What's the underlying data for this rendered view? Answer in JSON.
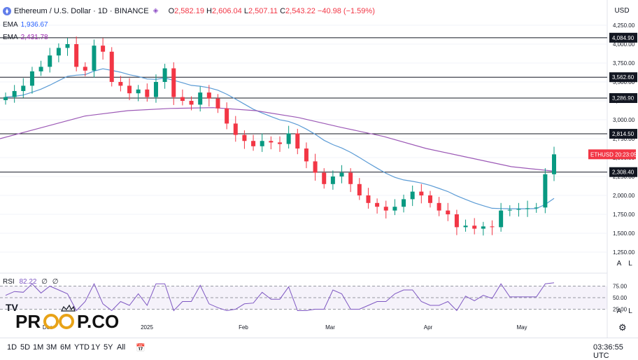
{
  "header": {
    "symbol": "Ethereum / U.S. Dollar · 1D · BINANCE",
    "ohlc": {
      "o_label": "O",
      "o": "2,582.19",
      "h_label": "H",
      "h": "2,606.04",
      "l_label": "L",
      "l": "2,507.11",
      "c_label": "C",
      "c": "2,543.22",
      "change": "−40.98 (−1.59%)"
    },
    "currency": "USD"
  },
  "indicators": [
    {
      "name": "EMA",
      "value": "1,936.67",
      "color": "#2962ff"
    },
    {
      "name": "EMA",
      "value": "2,431.78",
      "color": "#9c27b0"
    }
  ],
  "rsi": {
    "name": "RSI",
    "value": "82.22",
    "extra1": "∅",
    "extra2": "∅",
    "levels": [
      "75.00",
      "50.00",
      "25.00"
    ],
    "last": 82.22
  },
  "price_axis": {
    "ticks": [
      "4,250.00",
      "4,000.00",
      "3,750.00",
      "3,500.00",
      "3,250.00",
      "3,000.00",
      "2,750.00",
      "2,500.00",
      "2,250.00",
      "2,000.00",
      "1,750.00",
      "1,500.00",
      "1,250.00"
    ]
  },
  "levels": [
    "4,084.90",
    "3,562.60",
    "3,286.90",
    "2,814.50",
    "2,308.40"
  ],
  "price_label": {
    "symbol": "ETHUSD",
    "countdown": "20:23:05"
  },
  "time_axis": {
    "labels": [
      "Dec",
      "2025",
      "Feb",
      "Mar",
      "Apr",
      "May"
    ]
  },
  "timeframes": [
    "1D",
    "5D",
    "1M",
    "3M",
    "6M",
    "YTD",
    "1Y",
    "5Y",
    "All"
  ],
  "clock": "03:36:55 UTC",
  "scale_buttons": {
    "auto": "A",
    "log": "L"
  },
  "brand": {
    "text": "PR   P.CO"
  },
  "colors": {
    "up": "#089981",
    "down": "#f23645",
    "ema_fast": "#5b9bd5",
    "ema_slow": "#9c59b6",
    "rsi_line": "#7e57c2",
    "level_line": "#131722"
  },
  "chart_data": {
    "type": "candlestick",
    "title": "Ethereum / U.S. Dollar · 1D · BINANCE",
    "ylim": [
      1200,
      4300
    ],
    "series": [
      {
        "name": "ETHUSD",
        "kind": "candles",
        "close": [
          3300,
          3380,
          3450,
          3640,
          3700,
          3850,
          3950,
          4000,
          3700,
          3650,
          3980,
          3900,
          3500,
          3450,
          3350,
          3400,
          3300,
          3500,
          3680,
          3300,
          3250,
          3200,
          3360,
          3280,
          3150,
          2950,
          2800,
          2720,
          2650,
          2720,
          2700,
          2680,
          2820,
          2620,
          2450,
          2300,
          2150,
          2250,
          2300,
          2150,
          2000,
          1900,
          1850,
          1800,
          1850,
          1950,
          2050,
          2000,
          1900,
          1800,
          1750,
          1580,
          1600,
          1560,
          1590,
          1580,
          1800,
          1810,
          1820,
          1830,
          1840,
          2280,
          2543
        ]
      },
      {
        "name": "EMA",
        "kind": "line",
        "value": "1,936.67"
      },
      {
        "name": "EMA",
        "kind": "line",
        "value": "2,431.78"
      }
    ],
    "horizontal_levels": [
      4084.9,
      3562.6,
      3286.9,
      2814.5,
      2308.4
    ],
    "last_price": 2543.22
  }
}
